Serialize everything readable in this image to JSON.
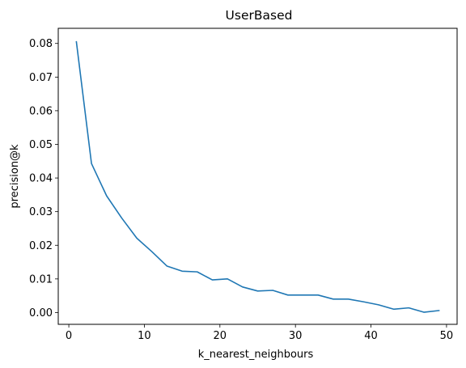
{
  "chart_data": {
    "type": "line",
    "title": "UserBased",
    "xlabel": "k_nearest_neighbours",
    "ylabel": "precision@k",
    "xlim": [
      -1.4,
      51.4
    ],
    "ylim": [
      -0.0035,
      0.0845
    ],
    "xticks": [
      0,
      10,
      20,
      30,
      40,
      50
    ],
    "xtick_labels": [
      "0",
      "10",
      "20",
      "30",
      "40",
      "50"
    ],
    "yticks": [
      0.0,
      0.01,
      0.02,
      0.03,
      0.04,
      0.05,
      0.06,
      0.07,
      0.08
    ],
    "ytick_labels": [
      "0.00",
      "0.01",
      "0.02",
      "0.03",
      "0.04",
      "0.05",
      "0.06",
      "0.07",
      "0.08"
    ],
    "grid": false,
    "series": [
      {
        "color": "#1f77b4",
        "x": [
          1,
          3,
          5,
          7,
          9,
          11,
          13,
          15,
          17,
          19,
          21,
          23,
          25,
          27,
          29,
          31,
          33,
          35,
          37,
          39,
          41,
          43,
          45,
          47,
          49
        ],
        "values": [
          0.0805,
          0.0443,
          0.0347,
          0.0281,
          0.0221,
          0.0181,
          0.0138,
          0.0123,
          0.0121,
          0.0097,
          0.01,
          0.0076,
          0.0064,
          0.0066,
          0.0052,
          0.0052,
          0.0052,
          0.004,
          0.004,
          0.0032,
          0.0023,
          0.001,
          0.0014,
          0.0001,
          0.0006
        ]
      }
    ]
  }
}
